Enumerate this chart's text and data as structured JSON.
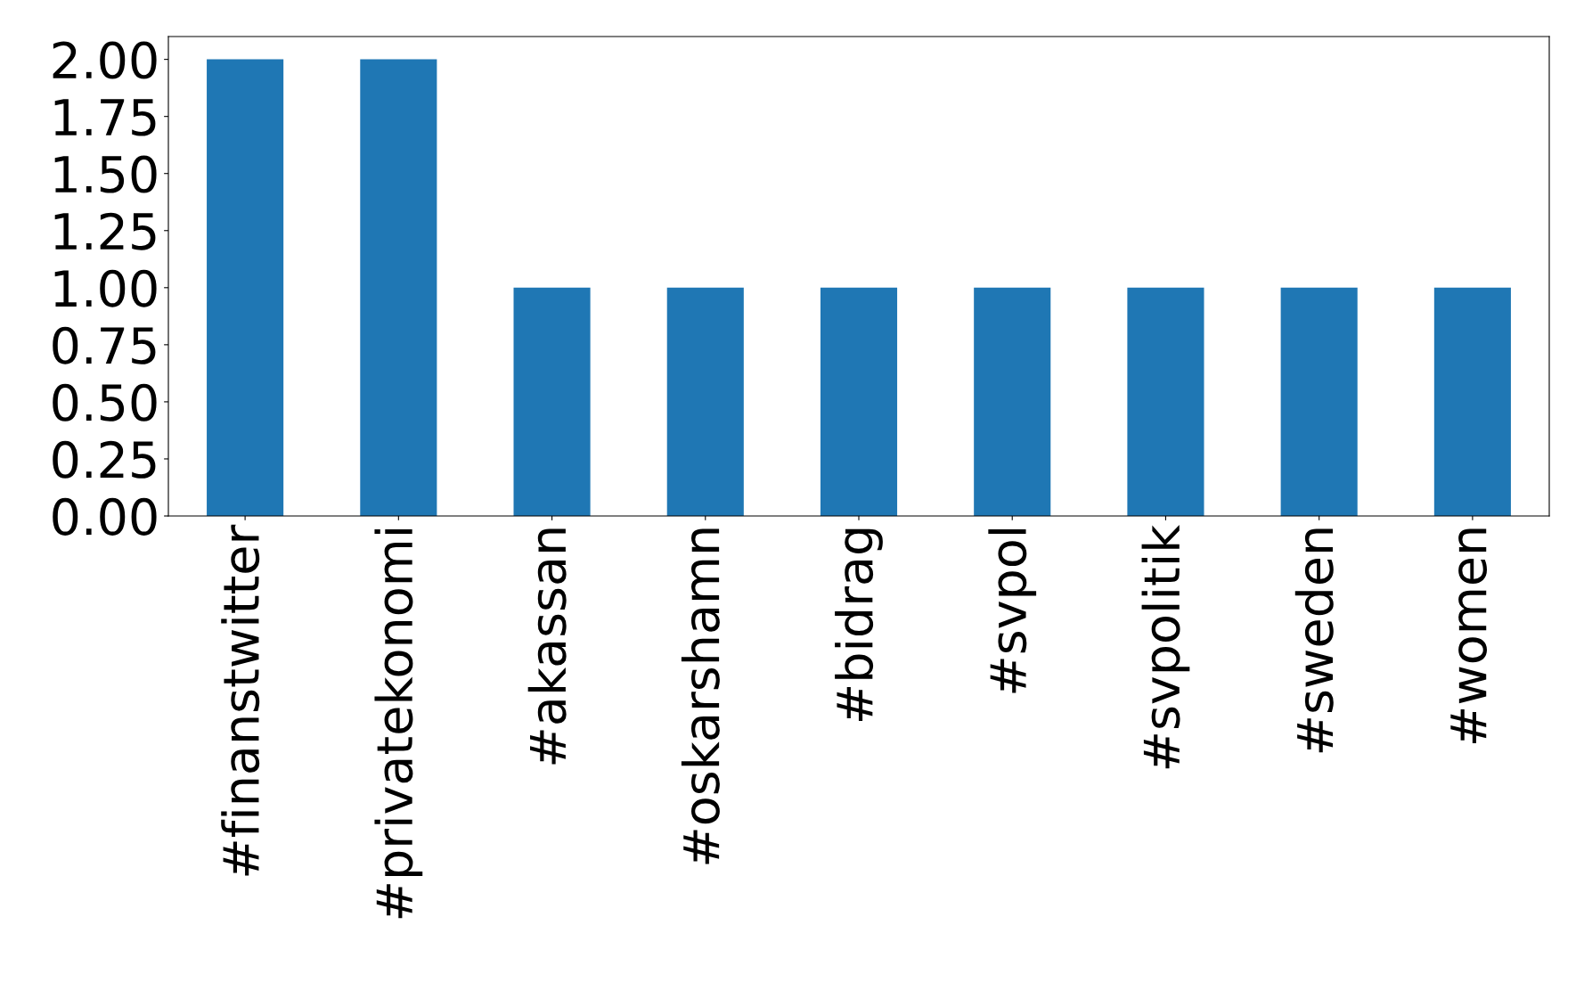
{
  "chart_data": {
    "type": "bar",
    "categories": [
      "#finanstwitter",
      "#privatekonomi",
      "#akassan",
      "#oskarshamn",
      "#bidrag",
      "#svpol",
      "#svpolitik",
      "#sweden",
      "#women"
    ],
    "values": [
      2,
      2,
      1,
      1,
      1,
      1,
      1,
      1,
      1
    ],
    "color": "#1f77b4",
    "ylim": [
      0,
      2.1
    ],
    "yticks": [
      {
        "value": 0,
        "label": "0.00"
      },
      {
        "value": 0.25,
        "label": "0.25"
      },
      {
        "value": 0.5,
        "label": "0.50"
      },
      {
        "value": 0.75,
        "label": "0.75"
      },
      {
        "value": 1,
        "label": "1.00"
      },
      {
        "value": 1.25,
        "label": "1.25"
      },
      {
        "value": 1.5,
        "label": "1.50"
      },
      {
        "value": 1.75,
        "label": "1.75"
      },
      {
        "value": 2,
        "label": "2.00"
      }
    ],
    "grid": false
  }
}
